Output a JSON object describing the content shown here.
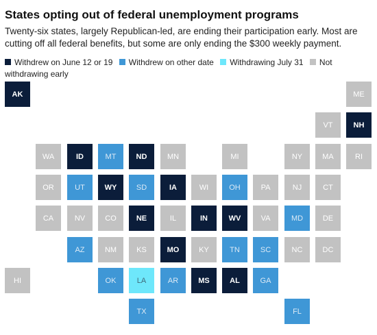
{
  "title": "States opting out of federal unemployment programs",
  "subtitle": "Twenty-six states, largely Republican-led, are ending their participation early. Most are cutting off all federal benefits, but some are only ending the $300 weekly payment.",
  "legend": [
    {
      "key": "june",
      "label": "Withdrew on June 12 or 19",
      "color": "#0b1d3a"
    },
    {
      "key": "other",
      "label": "Withdrew on other date",
      "color": "#3f97d6"
    },
    {
      "key": "july",
      "label": "Withdrawing July 31",
      "color": "#6ee7fb"
    },
    {
      "key": "not",
      "label": "Not withdrawing early",
      "color": "#c2c2c2"
    }
  ],
  "states": [
    {
      "abbr": "AK",
      "status": "june",
      "row": 0,
      "col": 0
    },
    {
      "abbr": "ME",
      "status": "not",
      "row": 0,
      "col": 11
    },
    {
      "abbr": "VT",
      "status": "not",
      "row": 1,
      "col": 10
    },
    {
      "abbr": "NH",
      "status": "june",
      "row": 1,
      "col": 11
    },
    {
      "abbr": "WA",
      "status": "not",
      "row": 2,
      "col": 1
    },
    {
      "abbr": "ID",
      "status": "june",
      "row": 2,
      "col": 2
    },
    {
      "abbr": "MT",
      "status": "other",
      "row": 2,
      "col": 3
    },
    {
      "abbr": "ND",
      "status": "june",
      "row": 2,
      "col": 4
    },
    {
      "abbr": "MN",
      "status": "not",
      "row": 2,
      "col": 5
    },
    {
      "abbr": "MI",
      "status": "not",
      "row": 2,
      "col": 7
    },
    {
      "abbr": "NY",
      "status": "not",
      "row": 2,
      "col": 9
    },
    {
      "abbr": "MA",
      "status": "not",
      "row": 2,
      "col": 10
    },
    {
      "abbr": "RI",
      "status": "not",
      "row": 2,
      "col": 11
    },
    {
      "abbr": "OR",
      "status": "not",
      "row": 3,
      "col": 1
    },
    {
      "abbr": "UT",
      "status": "other",
      "row": 3,
      "col": 2
    },
    {
      "abbr": "WY",
      "status": "june",
      "row": 3,
      "col": 3
    },
    {
      "abbr": "SD",
      "status": "other",
      "row": 3,
      "col": 4
    },
    {
      "abbr": "IA",
      "status": "june",
      "row": 3,
      "col": 5
    },
    {
      "abbr": "WI",
      "status": "not",
      "row": 3,
      "col": 6
    },
    {
      "abbr": "OH",
      "status": "other",
      "row": 3,
      "col": 7
    },
    {
      "abbr": "PA",
      "status": "not",
      "row": 3,
      "col": 8
    },
    {
      "abbr": "NJ",
      "status": "not",
      "row": 3,
      "col": 9
    },
    {
      "abbr": "CT",
      "status": "not",
      "row": 3,
      "col": 10
    },
    {
      "abbr": "CA",
      "status": "not",
      "row": 4,
      "col": 1
    },
    {
      "abbr": "NV",
      "status": "not",
      "row": 4,
      "col": 2
    },
    {
      "abbr": "CO",
      "status": "not",
      "row": 4,
      "col": 3
    },
    {
      "abbr": "NE",
      "status": "june",
      "row": 4,
      "col": 4
    },
    {
      "abbr": "IL",
      "status": "not",
      "row": 4,
      "col": 5
    },
    {
      "abbr": "IN",
      "status": "june",
      "row": 4,
      "col": 6
    },
    {
      "abbr": "WV",
      "status": "june",
      "row": 4,
      "col": 7
    },
    {
      "abbr": "VA",
      "status": "not",
      "row": 4,
      "col": 8
    },
    {
      "abbr": "MD",
      "status": "other",
      "row": 4,
      "col": 9
    },
    {
      "abbr": "DE",
      "status": "not",
      "row": 4,
      "col": 10
    },
    {
      "abbr": "AZ",
      "status": "other",
      "row": 5,
      "col": 2
    },
    {
      "abbr": "NM",
      "status": "not",
      "row": 5,
      "col": 3
    },
    {
      "abbr": "KS",
      "status": "not",
      "row": 5,
      "col": 4
    },
    {
      "abbr": "MO",
      "status": "june",
      "row": 5,
      "col": 5
    },
    {
      "abbr": "KY",
      "status": "not",
      "row": 5,
      "col": 6
    },
    {
      "abbr": "TN",
      "status": "other",
      "row": 5,
      "col": 7
    },
    {
      "abbr": "SC",
      "status": "other",
      "row": 5,
      "col": 8
    },
    {
      "abbr": "NC",
      "status": "not",
      "row": 5,
      "col": 9
    },
    {
      "abbr": "DC",
      "status": "not",
      "row": 5,
      "col": 10
    },
    {
      "abbr": "HI",
      "status": "not",
      "row": 6,
      "col": 0
    },
    {
      "abbr": "OK",
      "status": "other",
      "row": 6,
      "col": 3
    },
    {
      "abbr": "LA",
      "status": "july",
      "row": 6,
      "col": 4
    },
    {
      "abbr": "AR",
      "status": "other",
      "row": 6,
      "col": 5
    },
    {
      "abbr": "MS",
      "status": "june",
      "row": 6,
      "col": 6
    },
    {
      "abbr": "AL",
      "status": "june",
      "row": 6,
      "col": 7
    },
    {
      "abbr": "GA",
      "status": "other",
      "row": 6,
      "col": 8
    },
    {
      "abbr": "TX",
      "status": "other",
      "row": 7,
      "col": 4
    },
    {
      "abbr": "FL",
      "status": "other",
      "row": 7,
      "col": 9
    }
  ]
}
